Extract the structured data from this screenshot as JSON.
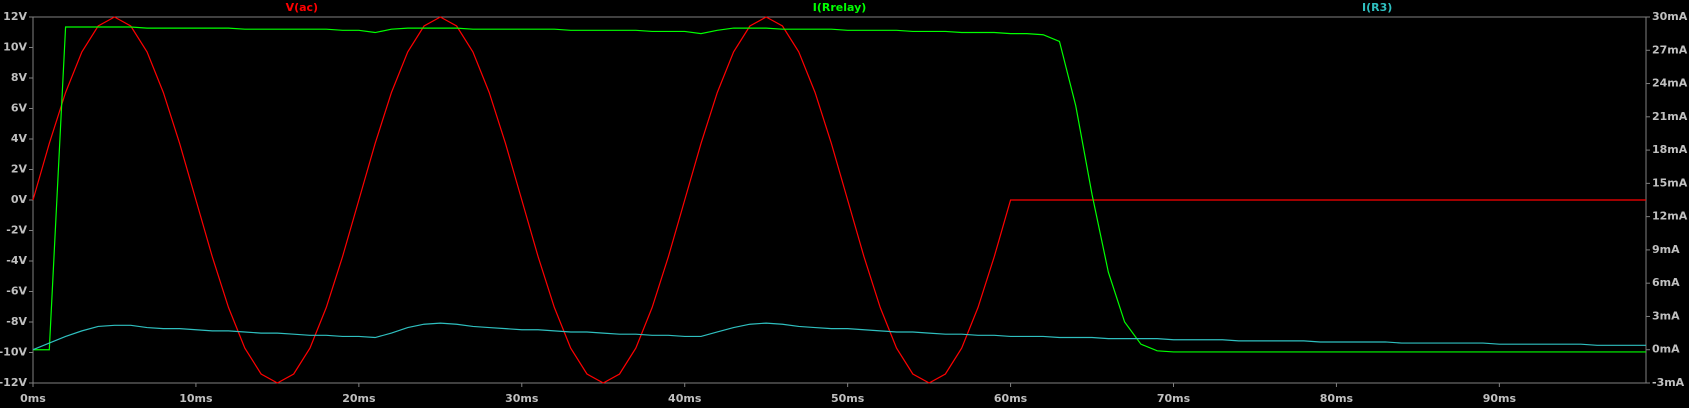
{
  "chart_data": {
    "type": "line",
    "x": [
      0,
      1,
      2,
      3,
      4,
      5,
      6,
      7,
      8,
      9,
      10,
      11,
      12,
      13,
      14,
      15,
      16,
      17,
      18,
      19,
      20,
      21,
      22,
      23,
      24,
      25,
      26,
      27,
      28,
      29,
      30,
      31,
      32,
      33,
      34,
      35,
      36,
      37,
      38,
      39,
      40,
      41,
      42,
      43,
      44,
      45,
      46,
      47,
      48,
      49,
      50,
      51,
      52,
      53,
      54,
      55,
      56,
      57,
      58,
      59,
      60,
      61,
      62,
      63,
      64,
      65,
      66,
      67,
      68,
      69,
      70,
      71,
      72,
      73,
      74,
      75,
      76,
      77,
      78,
      79,
      80,
      81,
      82,
      83,
      84,
      85,
      86,
      87,
      88,
      89,
      90,
      91,
      92,
      93,
      94,
      95,
      96,
      97,
      98,
      99
    ],
    "xlim": [
      0,
      99
    ],
    "xticks": [
      {
        "value": 0,
        "label": "0ms"
      },
      {
        "value": 10,
        "label": "10ms"
      },
      {
        "value": 20,
        "label": "20ms"
      },
      {
        "value": 30,
        "label": "30ms"
      },
      {
        "value": 40,
        "label": "40ms"
      },
      {
        "value": 50,
        "label": "50ms"
      },
      {
        "value": 60,
        "label": "60ms"
      },
      {
        "value": 70,
        "label": "70ms"
      },
      {
        "value": 80,
        "label": "80ms"
      },
      {
        "value": 90,
        "label": "90ms"
      }
    ],
    "ylim": [
      -12,
      12
    ],
    "yticks": [
      {
        "value": -12,
        "label": "-12V"
      },
      {
        "value": -10,
        "label": "-10V"
      },
      {
        "value": -8,
        "label": "-8V"
      },
      {
        "value": -6,
        "label": "-6V"
      },
      {
        "value": -4,
        "label": "-4V"
      },
      {
        "value": -2,
        "label": "-2V"
      },
      {
        "value": 0,
        "label": "0V"
      },
      {
        "value": 2,
        "label": "2V"
      },
      {
        "value": 4,
        "label": "4V"
      },
      {
        "value": 6,
        "label": "6V"
      },
      {
        "value": 8,
        "label": "8V"
      },
      {
        "value": 10,
        "label": "10V"
      },
      {
        "value": 12,
        "label": "12V"
      }
    ],
    "y2lim": [
      -3,
      30
    ],
    "y2ticks": [
      {
        "value": -3,
        "label": "-3mA"
      },
      {
        "value": 0,
        "label": "0mA"
      },
      {
        "value": 3,
        "label": "3mA"
      },
      {
        "value": 6,
        "label": "6mA"
      },
      {
        "value": 9,
        "label": "9mA"
      },
      {
        "value": 12,
        "label": "12mA"
      },
      {
        "value": 15,
        "label": "15mA"
      },
      {
        "value": 18,
        "label": "18mA"
      },
      {
        "value": 21,
        "label": "21mA"
      },
      {
        "value": 24,
        "label": "24mA"
      },
      {
        "value": 27,
        "label": "27mA"
      },
      {
        "value": 30,
        "label": "30mA"
      }
    ],
    "series": [
      {
        "name": "V(ac)",
        "color": "#ff0000",
        "values": [
          0,
          3.71,
          7.05,
          9.71,
          11.41,
          12,
          11.41,
          9.71,
          7.05,
          3.71,
          0,
          -3.71,
          -7.05,
          -9.71,
          -11.41,
          -12,
          -11.41,
          -9.71,
          -7.05,
          -3.71,
          0,
          3.71,
          7.05,
          9.71,
          11.41,
          12,
          11.41,
          9.71,
          7.05,
          3.71,
          0,
          -3.71,
          -7.05,
          -9.71,
          -11.41,
          -12,
          -11.41,
          -9.71,
          -7.05,
          -3.71,
          0,
          3.71,
          7.05,
          9.71,
          11.41,
          12,
          11.41,
          9.71,
          7.05,
          3.71,
          0,
          -3.71,
          -7.05,
          -9.71,
          -11.41,
          -12,
          -11.41,
          -9.71,
          -7.05,
          -3.71,
          0,
          0,
          0,
          0,
          0,
          0,
          0,
          0,
          0,
          0,
          0,
          0,
          0,
          0,
          0,
          0,
          0,
          0,
          0,
          0,
          0,
          0,
          0,
          0,
          0,
          0,
          0,
          0,
          0,
          0,
          0,
          0,
          0,
          0,
          0,
          0,
          0,
          0,
          0,
          0
        ]
      },
      {
        "name": "I(Rrelay)",
        "color": "#00ff00",
        "axis": "y2",
        "values": [
          0,
          0,
          29.1,
          29.1,
          29.1,
          29.1,
          29.1,
          29.0,
          29.0,
          29.0,
          29.0,
          29.0,
          29.0,
          28.9,
          28.9,
          28.9,
          28.9,
          28.9,
          28.9,
          28.8,
          28.8,
          28.6,
          28.9,
          29.0,
          29.0,
          29.0,
          29.0,
          28.9,
          28.9,
          28.9,
          28.9,
          28.9,
          28.9,
          28.8,
          28.8,
          28.8,
          28.8,
          28.8,
          28.7,
          28.7,
          28.7,
          28.5,
          28.8,
          29.0,
          29.0,
          29.0,
          28.9,
          28.9,
          28.9,
          28.9,
          28.8,
          28.8,
          28.8,
          28.8,
          28.7,
          28.7,
          28.7,
          28.6,
          28.6,
          28.6,
          28.5,
          28.5,
          28.4,
          27.8,
          22,
          14,
          7,
          2.5,
          0.5,
          -0.1,
          -0.2,
          -0.2,
          -0.2,
          -0.2,
          -0.2,
          -0.2,
          -0.2,
          -0.2,
          -0.2,
          -0.2,
          -0.2,
          -0.2,
          -0.2,
          -0.2,
          -0.2,
          -0.2,
          -0.2,
          -0.2,
          -0.2,
          -0.2,
          -0.2,
          -0.2,
          -0.2,
          -0.2,
          -0.2,
          -0.2,
          -0.2,
          -0.2,
          -0.2,
          -0.2
        ]
      },
      {
        "name": "I(R3)",
        "color": "#2fbfbf",
        "axis": "y2",
        "values": [
          0,
          0.6,
          1.2,
          1.7,
          2.1,
          2.2,
          2.2,
          2.0,
          1.9,
          1.9,
          1.8,
          1.7,
          1.7,
          1.6,
          1.5,
          1.5,
          1.4,
          1.3,
          1.3,
          1.2,
          1.2,
          1.1,
          1.5,
          2.0,
          2.3,
          2.4,
          2.3,
          2.1,
          2.0,
          1.9,
          1.8,
          1.8,
          1.7,
          1.6,
          1.6,
          1.5,
          1.4,
          1.4,
          1.3,
          1.3,
          1.2,
          1.2,
          1.6,
          2.0,
          2.3,
          2.4,
          2.3,
          2.1,
          2.0,
          1.9,
          1.9,
          1.8,
          1.7,
          1.6,
          1.6,
          1.5,
          1.4,
          1.4,
          1.3,
          1.3,
          1.2,
          1.2,
          1.2,
          1.1,
          1.1,
          1.1,
          1.0,
          1.0,
          1.0,
          1.0,
          0.9,
          0.9,
          0.9,
          0.9,
          0.8,
          0.8,
          0.8,
          0.8,
          0.8,
          0.7,
          0.7,
          0.7,
          0.7,
          0.7,
          0.6,
          0.6,
          0.6,
          0.6,
          0.6,
          0.6,
          0.5,
          0.5,
          0.5,
          0.5,
          0.5,
          0.5,
          0.4,
          0.4,
          0.4,
          0.4
        ]
      }
    ]
  }
}
